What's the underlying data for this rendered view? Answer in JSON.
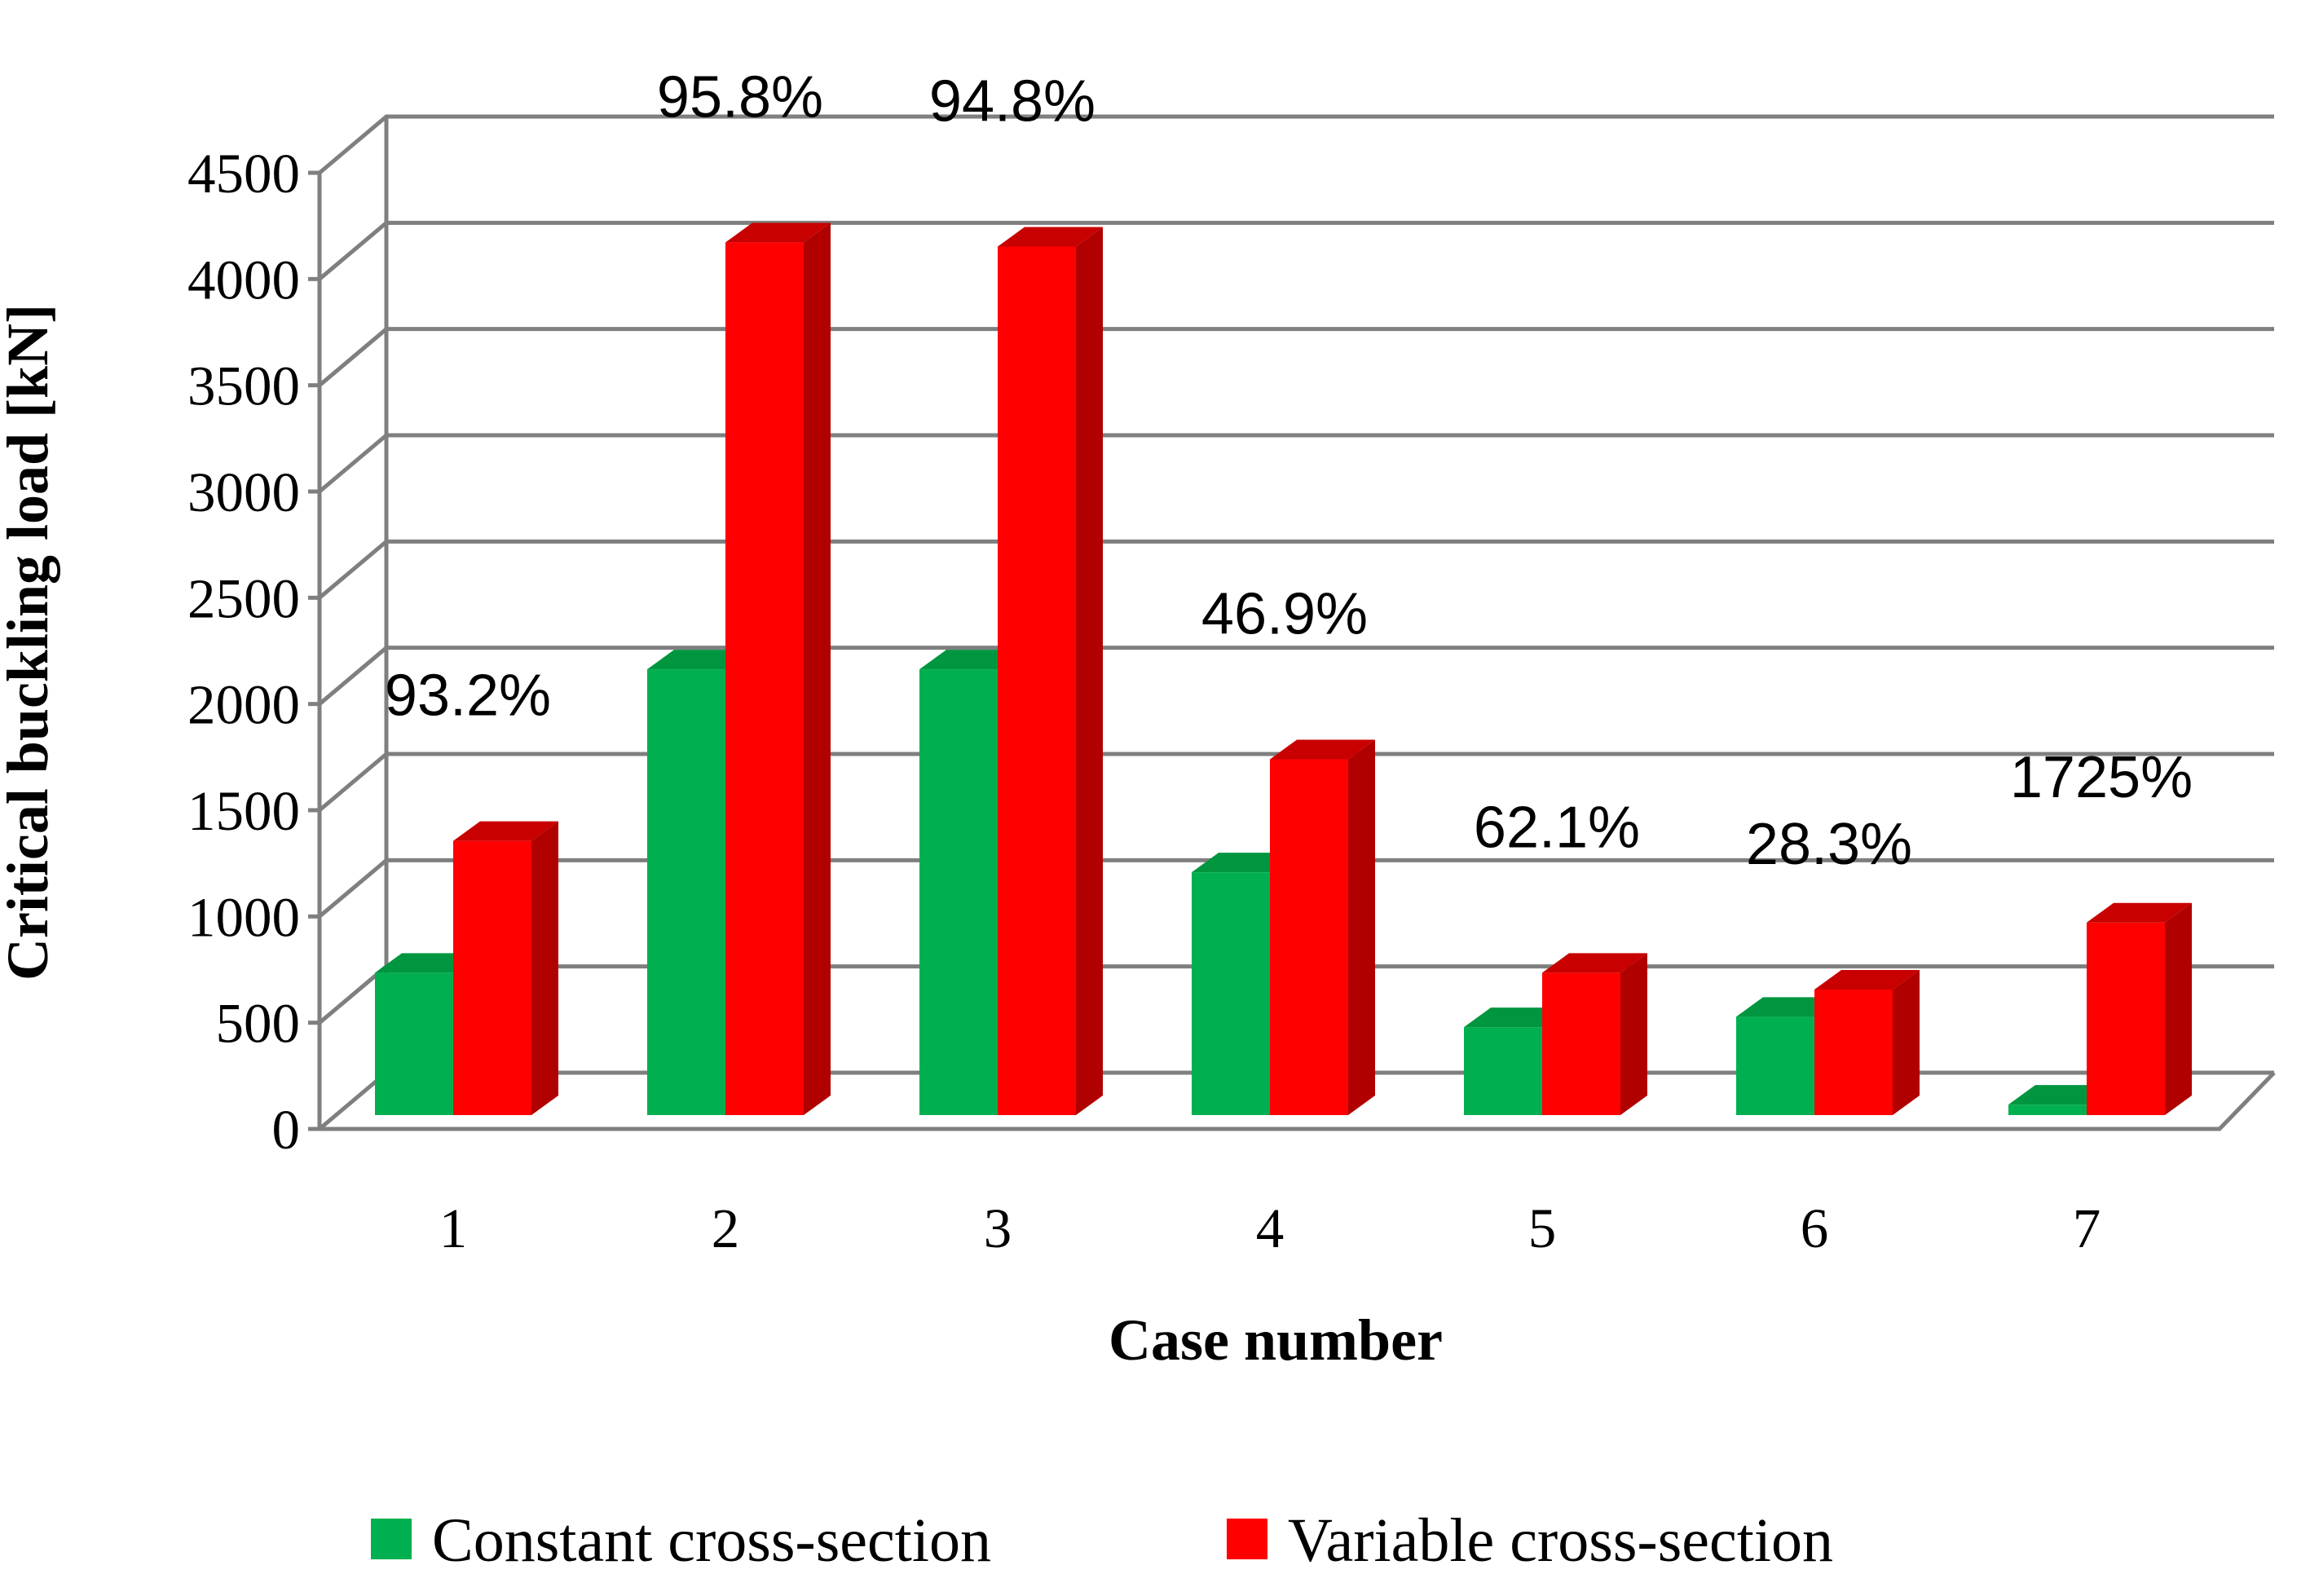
{
  "chart_data": {
    "type": "bar",
    "style": "3d-clustered-column",
    "categories": [
      "1",
      "2",
      "3",
      "4",
      "5",
      "6",
      "7"
    ],
    "series": [
      {
        "name": "Constant cross-section",
        "color": "#00B050",
        "side_color": "#008A3E",
        "top_color": "#00963F",
        "values": [
          680,
          2130,
          2130,
          1160,
          420,
          470,
          50
        ]
      },
      {
        "name": "Variable cross-section",
        "color": "#FF0000",
        "side_color": "#B00000",
        "top_color": "#C80000",
        "values": [
          1310,
          4170,
          4150,
          1700,
          680,
          600,
          920
        ]
      }
    ],
    "annotations": [
      "93.2%",
      "95.8%",
      "94.8%",
      "46.9%",
      "62.1%",
      "28.3%",
      "1725%"
    ],
    "title": "",
    "xlabel": "Case number",
    "ylabel": "Critical buckling load [kN]",
    "ylim": [
      0,
      4500
    ],
    "yticks": [
      "0",
      "500",
      "1000",
      "1500",
      "2000",
      "2500",
      "3000",
      "3500",
      "4000",
      "4500"
    ],
    "grid": true,
    "legend": "bottom",
    "colors": {
      "gridline": "#7F7F7F",
      "background": "#FFFFFF"
    }
  }
}
